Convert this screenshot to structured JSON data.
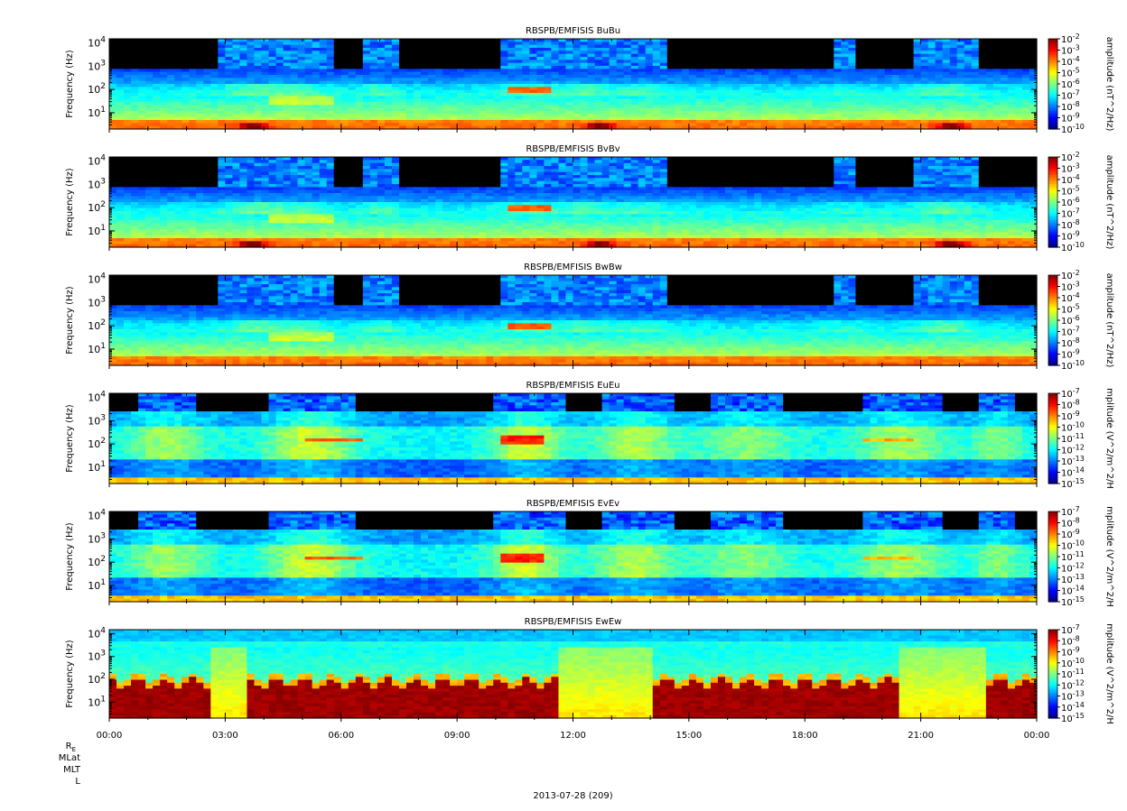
{
  "figure": {
    "date_label": "2013-07-28 (209)",
    "ephemeris_labels": [
      "R",
      "MLat",
      "MLT",
      "L"
    ],
    "ephemeris_subscript": "E"
  },
  "chart_data": [
    {
      "type": "heatmap",
      "title": "RBSPB/EMFISIS  BuBu",
      "ylabel": "Frequency (Hz)",
      "zlabel": "amplitude (nT^2/Hz)",
      "yscale": "log",
      "ylim": [
        2,
        15000
      ],
      "yticks": [
        "10^1",
        "10^2",
        "10^3",
        "10^4"
      ],
      "zticks": [
        "10^-2",
        "10^-3",
        "10^-4",
        "10^-5",
        "10^-6",
        "10^-7",
        "10^-8",
        "10^-9",
        "10^-10"
      ],
      "colormap": "rainbow-jet",
      "regime": "B"
    },
    {
      "type": "heatmap",
      "title": "RBSPB/EMFISIS  BvBv",
      "ylabel": "Frequency (Hz)",
      "zlabel": "amplitude (nT^2/Hz)",
      "yscale": "log",
      "ylim": [
        2,
        15000
      ],
      "yticks": [
        "10^1",
        "10^2",
        "10^3",
        "10^4"
      ],
      "zticks": [
        "10^-2",
        "10^-3",
        "10^-4",
        "10^-5",
        "10^-6",
        "10^-7",
        "10^-8",
        "10^-9",
        "10^-10"
      ],
      "colormap": "rainbow-jet",
      "regime": "B"
    },
    {
      "type": "heatmap",
      "title": "RBSPB/EMFISIS  BwBw",
      "ylabel": "Frequency (Hz)",
      "zlabel": "amplitude (nT^2/Hz)",
      "yscale": "log",
      "ylim": [
        2,
        15000
      ],
      "yticks": [
        "10^1",
        "10^2",
        "10^3",
        "10^4"
      ],
      "zticks": [
        "10^-2",
        "10^-3",
        "10^-4",
        "10^-5",
        "10^-6",
        "10^-7",
        "10^-8",
        "10^-9",
        "10^-10"
      ],
      "colormap": "rainbow-jet",
      "regime": "Bw"
    },
    {
      "type": "heatmap",
      "title": "RBSPB/EMFISIS  EuEu",
      "ylabel": "Frequency (Hz)",
      "zlabel": "mplitude (V^2/m^2/H",
      "yscale": "log",
      "ylim": [
        2,
        15000
      ],
      "yticks": [
        "10^1",
        "10^2",
        "10^3",
        "10^4"
      ],
      "zticks": [
        "10^-7",
        "10^-8",
        "10^-9",
        "10^-10",
        "10^-11",
        "10^-12",
        "10^-13",
        "10^-14",
        "10^-15"
      ],
      "colormap": "rainbow-jet",
      "regime": "E"
    },
    {
      "type": "heatmap",
      "title": "RBSPB/EMFISIS  EvEv",
      "ylabel": "Frequency (Hz)",
      "zlabel": "mplitude (V^2/m^2/H",
      "yscale": "log",
      "ylim": [
        2,
        15000
      ],
      "yticks": [
        "10^1",
        "10^2",
        "10^3",
        "10^4"
      ],
      "zticks": [
        "10^-7",
        "10^-8",
        "10^-9",
        "10^-10",
        "10^-11",
        "10^-12",
        "10^-13",
        "10^-14",
        "10^-15"
      ],
      "colormap": "rainbow-jet",
      "regime": "E"
    },
    {
      "type": "heatmap",
      "title": "RBSPB/EMFISIS  EwEw",
      "ylabel": "Frequency (Hz)",
      "zlabel": "mplitude (V^2/m^2/H",
      "yscale": "log",
      "ylim": [
        2,
        15000
      ],
      "yticks": [
        "10^1",
        "10^2",
        "10^3",
        "10^4"
      ],
      "zticks": [
        "10^-7",
        "10^-8",
        "10^-9",
        "10^-10",
        "10^-11",
        "10^-12",
        "10^-13",
        "10^-14",
        "10^-15"
      ],
      "colormap": "rainbow-jet",
      "regime": "Ew"
    }
  ],
  "time_axis": {
    "xlim": [
      "00:00",
      "24:00"
    ],
    "ticks": [
      "00:00",
      "03:00",
      "06:00",
      "09:00",
      "12:00",
      "15:00",
      "18:00",
      "21:00",
      "00:00"
    ],
    "minor_tick_minutes": 60
  }
}
